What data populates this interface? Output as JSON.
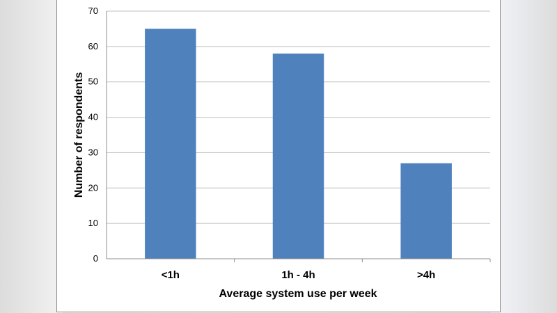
{
  "chart_data": {
    "type": "bar",
    "categories": [
      "<1h",
      "1h - 4h",
      ">4h"
    ],
    "values": [
      65,
      58,
      27
    ],
    "title": "",
    "xlabel": "Average system use per week",
    "ylabel": "Number of respondents",
    "ylim": [
      0,
      70
    ],
    "yticks": [
      0,
      10,
      20,
      30,
      40,
      50,
      60,
      70
    ],
    "grid": true,
    "legend": "none",
    "bar_color": "#4F81BD",
    "grid_color": "#BFBFBF"
  }
}
